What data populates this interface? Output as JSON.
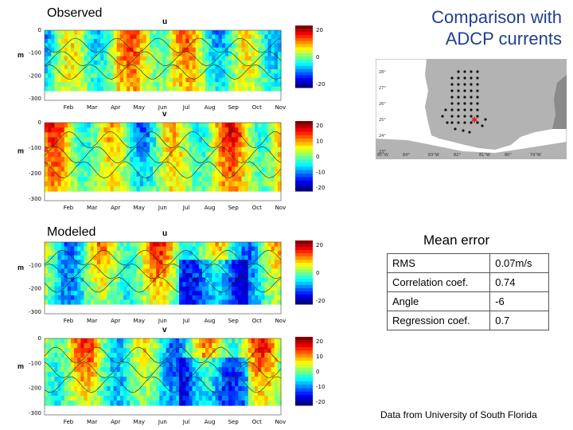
{
  "labels": {
    "observed": "Observed",
    "modeled": "Modeled",
    "title_line1": "Comparison with",
    "title_line2": "ADCP currents",
    "mean_error": "Mean error",
    "credit": "Data from University of South Florida"
  },
  "panels": [
    {
      "id": "obs-u",
      "var": "u",
      "yticks": [
        "0",
        "-100",
        "-200",
        "-300"
      ],
      "cbar": [
        "20",
        "0",
        "-20"
      ]
    },
    {
      "id": "obs-v",
      "var": "v",
      "yticks": [
        "0",
        "-100",
        "-200",
        "-300"
      ],
      "cbar": [
        "20",
        "10",
        "0",
        "-10",
        "-20"
      ]
    },
    {
      "id": "mod-u",
      "var": "u",
      "yticks": [
        "-100",
        "-200",
        "-300"
      ],
      "cbar": [
        "20",
        "0",
        "-20"
      ]
    },
    {
      "id": "mod-v",
      "var": "v",
      "yticks": [
        "0",
        "-100",
        "-200",
        "-300"
      ],
      "cbar": [
        "20",
        "10",
        "0",
        "-10",
        "-20"
      ]
    }
  ],
  "months": [
    "Feb",
    "Mar",
    "Apr",
    "May",
    "Jun",
    "Jul",
    "Aug",
    "Sep",
    "Oct",
    "Nov"
  ],
  "y_unit": "m",
  "map": {
    "lat_labels": [
      "28°",
      "27°",
      "26°",
      "25°",
      "24°",
      "23°"
    ],
    "lon_labels": [
      "85°W",
      "84°",
      "83°W",
      "82°",
      "81°W",
      "80°",
      "79°W"
    ]
  },
  "error_table": [
    {
      "name": "RMS",
      "value": "0.07m/s"
    },
    {
      "name": "Correlation coef.",
      "value": "0.74"
    },
    {
      "name": "Angle",
      "value": "-6"
    },
    {
      "name": "Regression coef.",
      "value": "0.7"
    }
  ]
}
